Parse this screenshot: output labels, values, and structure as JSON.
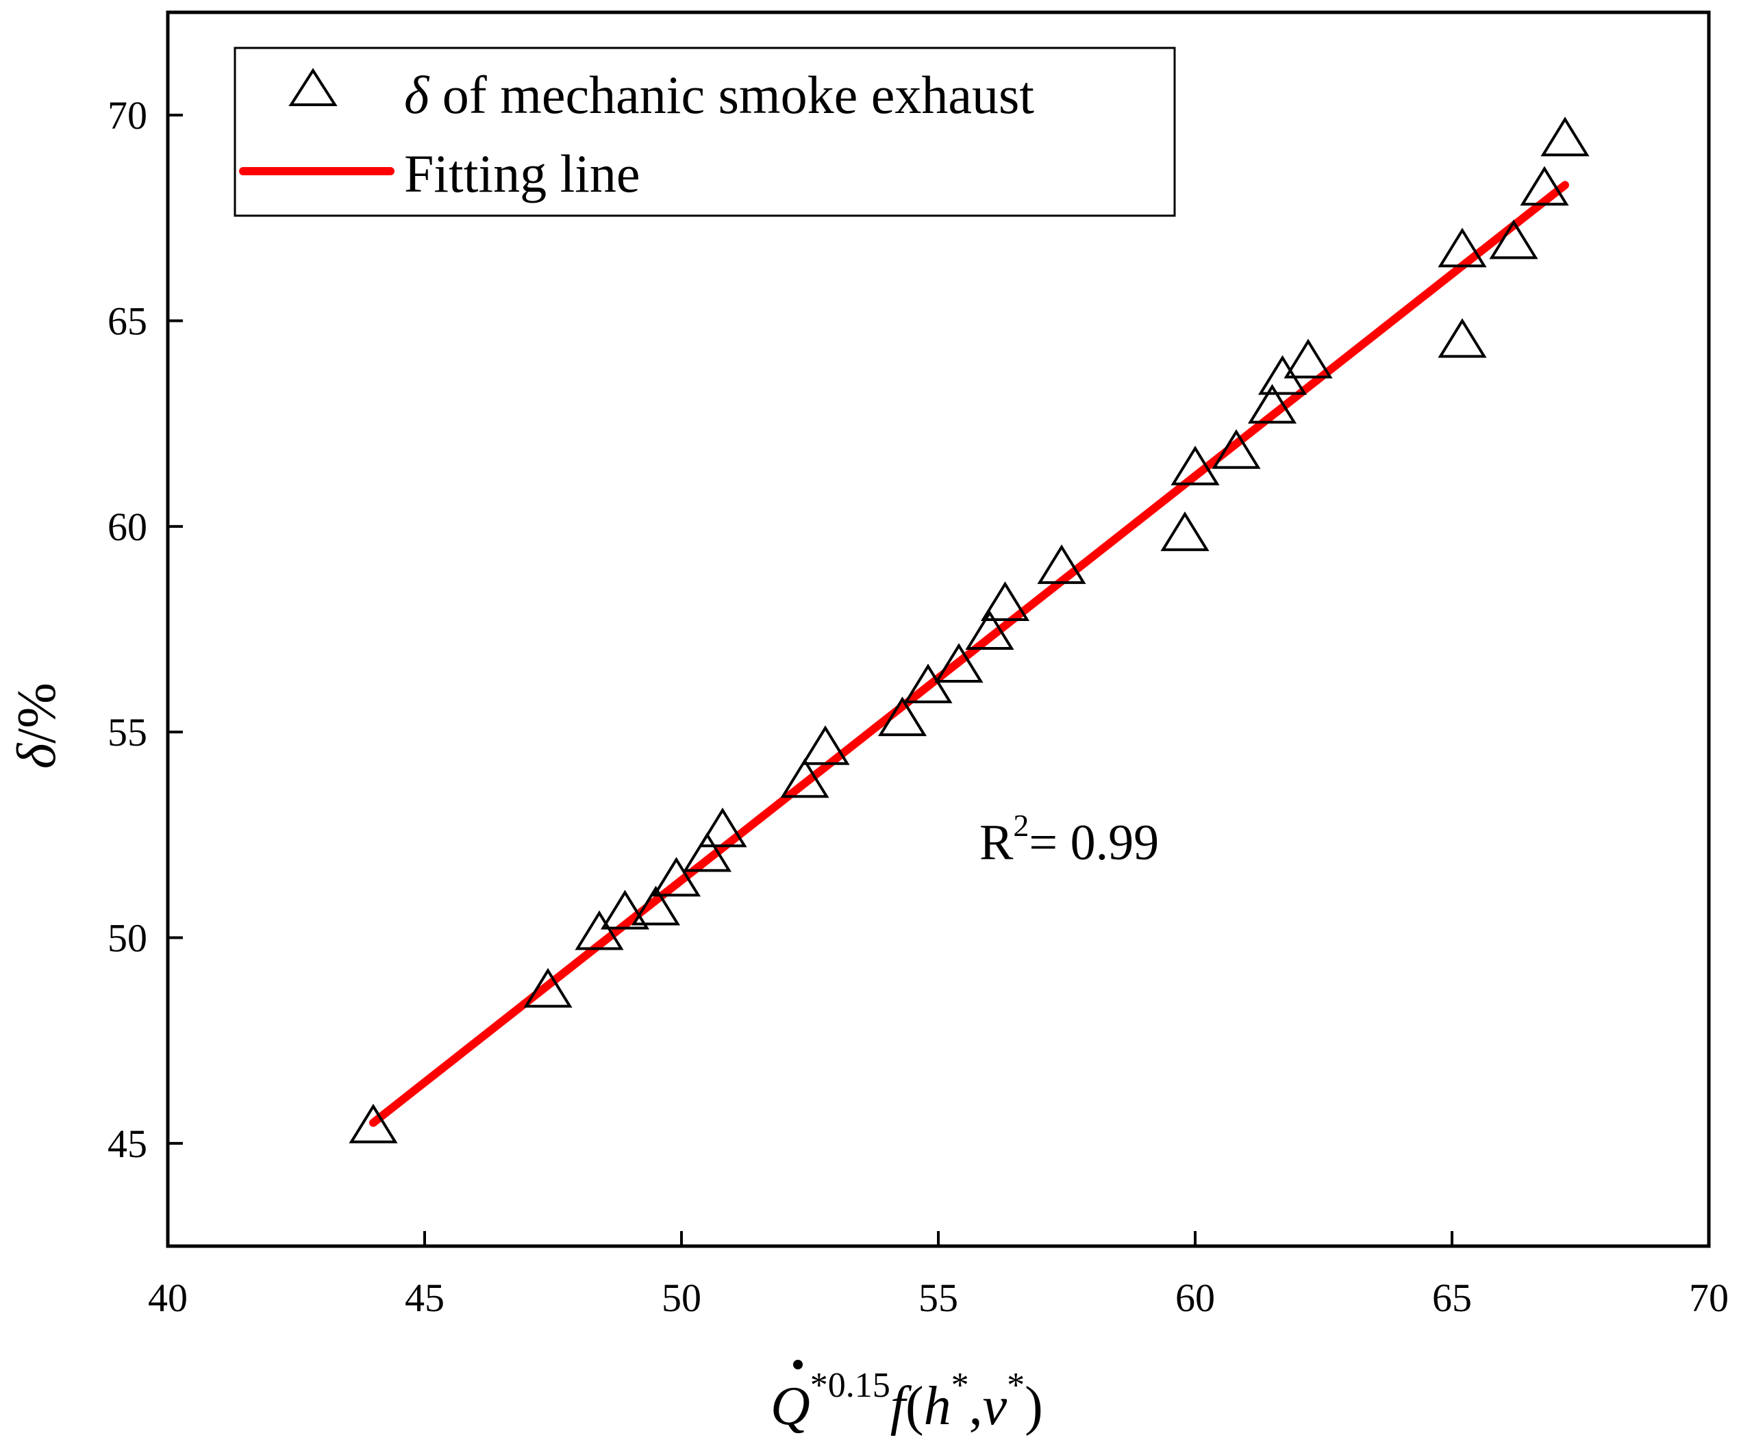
{
  "chart_data": {
    "type": "scatter",
    "x_range": [
      40,
      70
    ],
    "y_range": [
      42.5,
      72.5
    ],
    "x_ticks": [
      40,
      45,
      50,
      55,
      60,
      65,
      70
    ],
    "y_ticks": [
      45,
      50,
      55,
      60,
      65,
      70
    ],
    "x_tick_labels": [
      "40",
      "45",
      "50",
      "55",
      "60",
      "65",
      "70"
    ],
    "y_tick_labels": [
      "45",
      "50",
      "55",
      "60",
      "65",
      "70"
    ],
    "xlabel": {
      "q": "Q",
      "q_sup": "*0.15",
      "f": "f",
      "open": "(",
      "h": "h",
      "h_sup": "*",
      "comma": ",",
      "v": "v",
      "v_sup": "*",
      "close": ")"
    },
    "ylabel": {
      "delta": "δ",
      "unit": "/%"
    },
    "legend": {
      "position": "top-left",
      "marker_entry_delta": "δ",
      "marker_entry_text": " of mechanic smoke exhaust",
      "line_entry": "Fitting line"
    },
    "annotation": {
      "r": "R",
      "sup": "2",
      "value": "= 0.99"
    },
    "series": [
      {
        "name": "δ of mechanic smoke exhaust",
        "marker": "open-triangle",
        "points": [
          {
            "x": 44.0,
            "y": 45.4
          },
          {
            "x": 47.4,
            "y": 48.7
          },
          {
            "x": 48.4,
            "y": 50.1
          },
          {
            "x": 48.9,
            "y": 50.6
          },
          {
            "x": 49.5,
            "y": 50.7
          },
          {
            "x": 49.9,
            "y": 51.4
          },
          {
            "x": 50.5,
            "y": 52.0
          },
          {
            "x": 50.8,
            "y": 52.6
          },
          {
            "x": 52.4,
            "y": 53.8
          },
          {
            "x": 52.8,
            "y": 54.6
          },
          {
            "x": 54.3,
            "y": 55.3
          },
          {
            "x": 54.8,
            "y": 56.1
          },
          {
            "x": 55.4,
            "y": 56.6
          },
          {
            "x": 56.0,
            "y": 57.4
          },
          {
            "x": 56.3,
            "y": 58.1
          },
          {
            "x": 57.4,
            "y": 59.0
          },
          {
            "x": 59.8,
            "y": 59.8
          },
          {
            "x": 60.0,
            "y": 61.4
          },
          {
            "x": 60.8,
            "y": 61.8
          },
          {
            "x": 61.5,
            "y": 62.9
          },
          {
            "x": 61.7,
            "y": 63.6
          },
          {
            "x": 62.2,
            "y": 64.0
          },
          {
            "x": 65.2,
            "y": 64.5
          },
          {
            "x": 65.2,
            "y": 66.7
          },
          {
            "x": 66.2,
            "y": 66.9
          },
          {
            "x": 66.8,
            "y": 68.2
          },
          {
            "x": 67.2,
            "y": 69.4
          }
        ]
      },
      {
        "name": "Fitting line",
        "type": "line",
        "x": [
          44.0,
          67.2
        ],
        "y": [
          45.5,
          68.3
        ]
      }
    ],
    "grid": false
  },
  "colors": {
    "fit_line": "#ff0000",
    "marker_stroke": "#000000",
    "axis": "#000000"
  }
}
